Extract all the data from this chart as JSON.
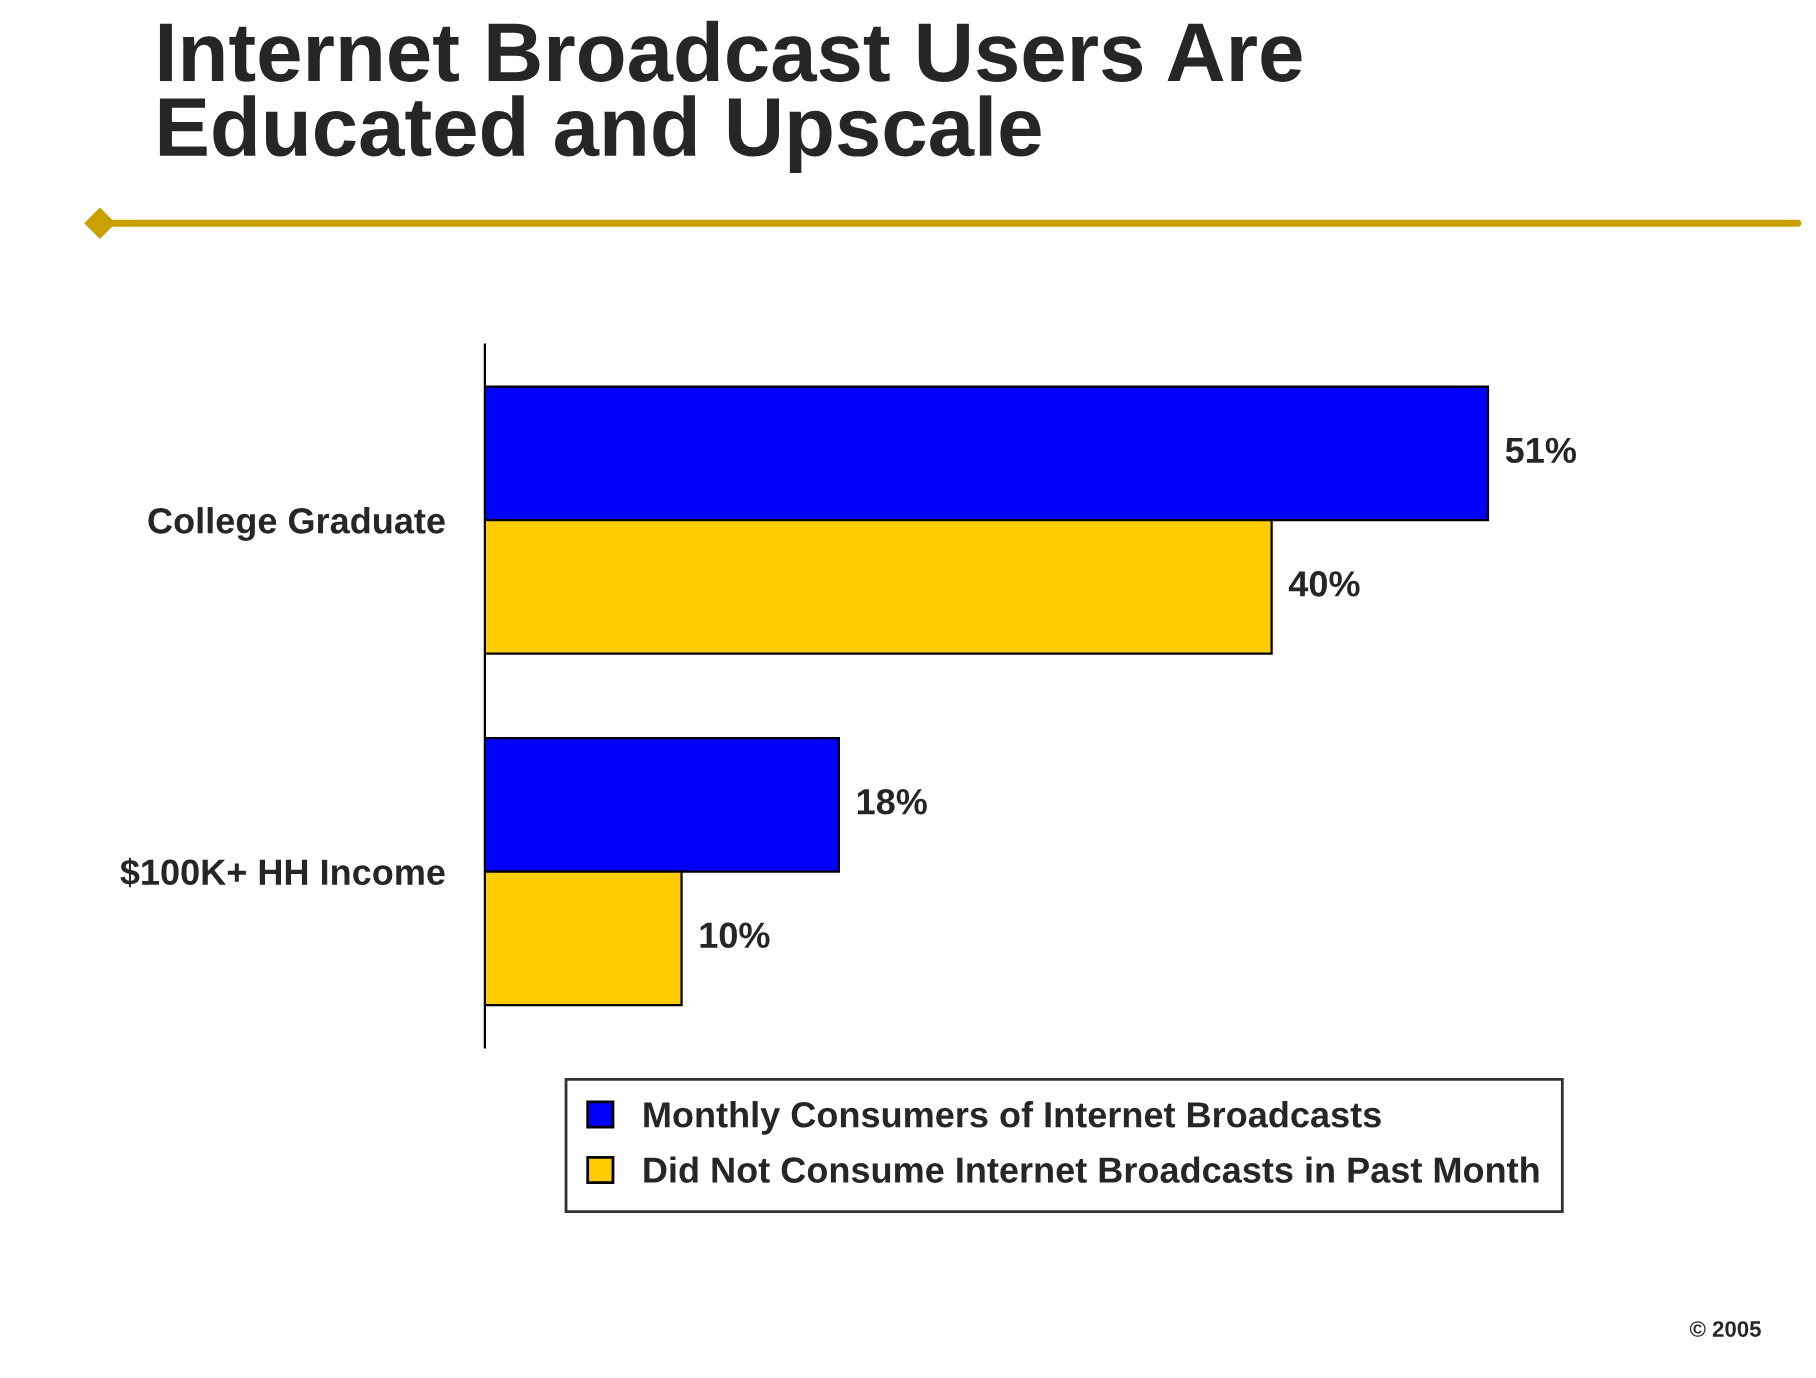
{
  "chart_data": {
    "type": "bar",
    "orientation": "horizontal",
    "title": "Internet Broadcast Users Are\nEducated and Upscale",
    "categories": [
      "College Graduate",
      "$100K+ HH Income"
    ],
    "series": [
      {
        "name": "Monthly Consumers of Internet Broadcasts",
        "color": "#0000ff",
        "values": [
          51,
          18
        ],
        "value_labels": [
          "51%",
          "18%"
        ]
      },
      {
        "name": "Did Not Consume Internet Broadcasts in Past Month",
        "color": "#ffcc00",
        "values": [
          40,
          10
        ],
        "value_labels": [
          "40%",
          "10%"
        ]
      }
    ],
    "tick_labels": "y",
    "legend": "bottom",
    "grid": false,
    "annotations": [
      "© 2005"
    ]
  }
}
